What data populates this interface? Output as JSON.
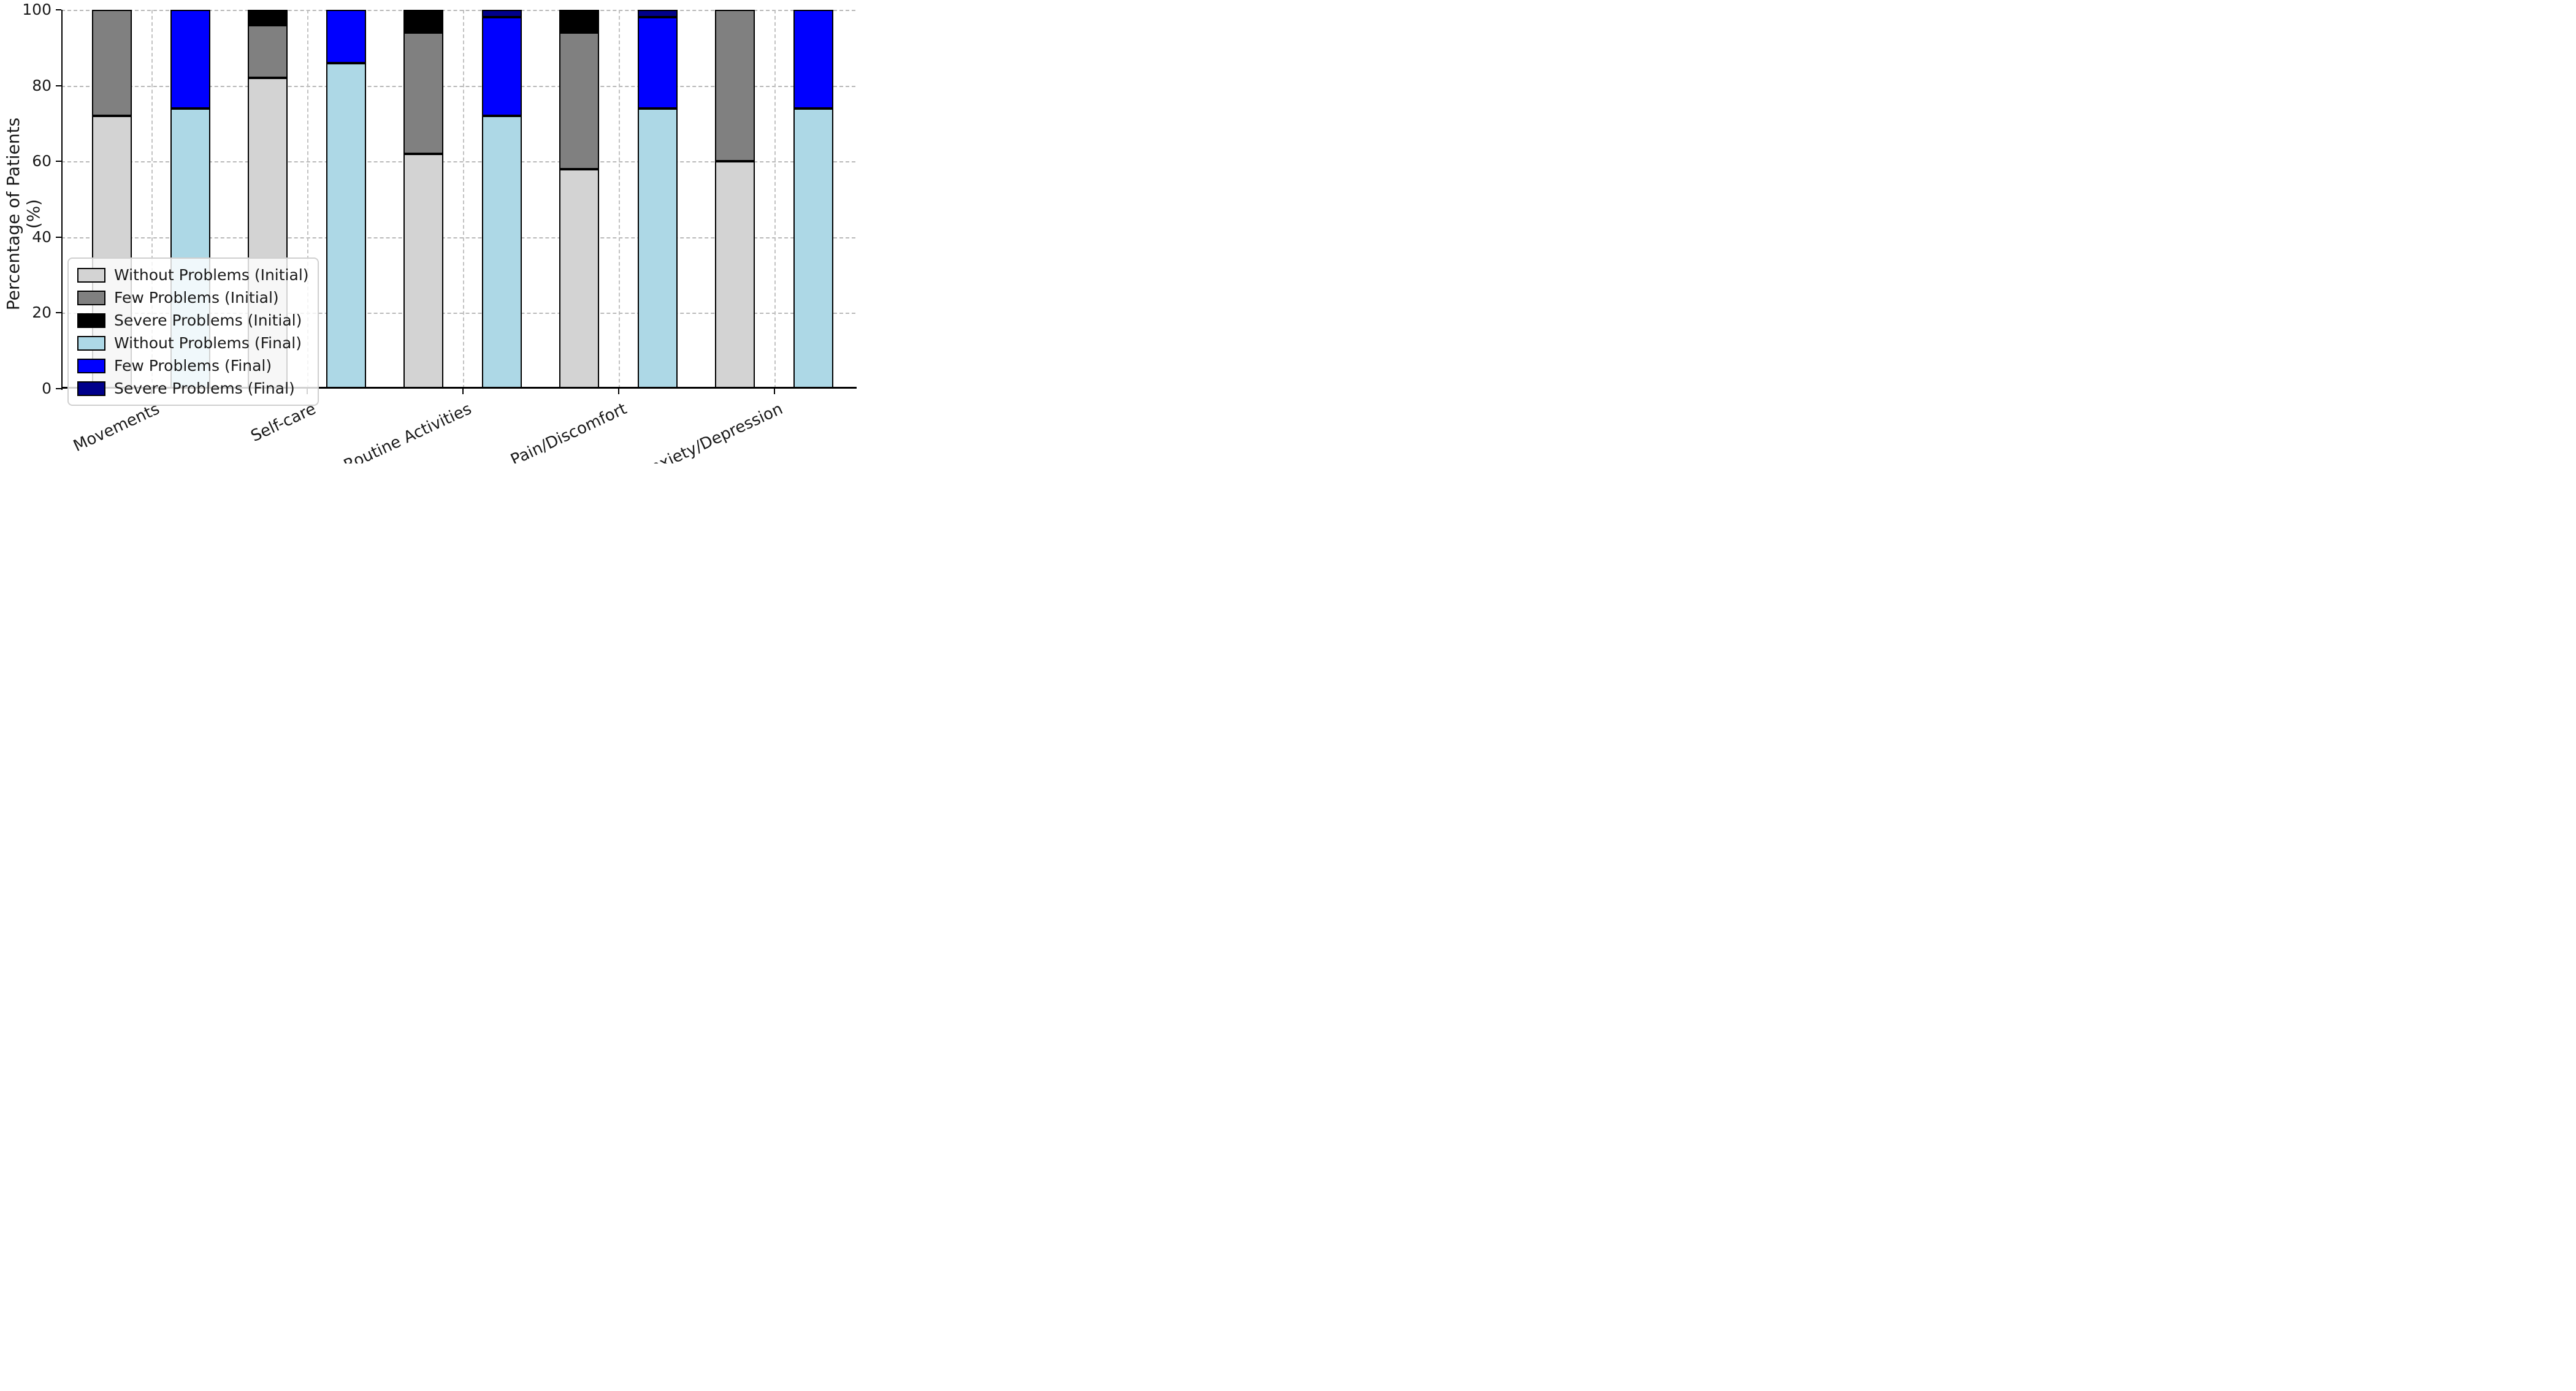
{
  "chart_data": {
    "type": "bar",
    "subtype": "grouped-stacked",
    "title": "",
    "xlabel": "",
    "ylabel": "Percentage of Patients (%)",
    "ylim": [
      0,
      100
    ],
    "yticks": [
      0,
      20,
      40,
      60,
      80,
      100
    ],
    "grid": "dashed, horizontal at y ticks and vertical at category centers",
    "legend_position": "lower left inside plot",
    "categories": [
      "Movements",
      "Self-care",
      "Routine Activities",
      "Pain/Discomfort",
      "Anxiety/Depression"
    ],
    "groups_per_category": [
      "Initial",
      "Final"
    ],
    "series": [
      {
        "name": "Without Problems (Initial)",
        "stack": "Initial",
        "color": "#d3d3d3",
        "values": [
          72,
          82,
          62,
          58,
          60
        ]
      },
      {
        "name": "Few Problems (Initial)",
        "stack": "Initial",
        "color": "#808080",
        "values": [
          28,
          14,
          32,
          36,
          40
        ]
      },
      {
        "name": "Severe Problems (Initial)",
        "stack": "Initial",
        "color": "#000000",
        "values": [
          0,
          4,
          6,
          6,
          0
        ]
      },
      {
        "name": "Without Problems (Final)",
        "stack": "Final",
        "color": "#add8e6",
        "values": [
          74,
          86,
          72,
          74,
          74
        ]
      },
      {
        "name": "Few Problems (Final)",
        "stack": "Final",
        "color": "#0000ff",
        "values": [
          26,
          14,
          26,
          24,
          26
        ]
      },
      {
        "name": "Severe Problems (Final)",
        "stack": "Final",
        "color": "#00008b",
        "values": [
          0,
          0,
          2,
          2,
          0
        ]
      }
    ]
  },
  "style": {
    "bar_edge_color": "#000000",
    "grid_color": "#b9b9b9",
    "text_color": "#1a1a1a",
    "background": "#ffffff"
  }
}
